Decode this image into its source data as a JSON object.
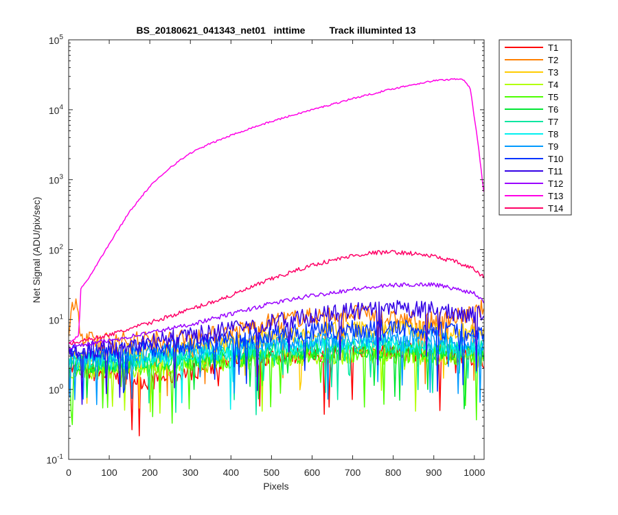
{
  "chart_data": {
    "type": "line",
    "title": "BS_20180621_041343_net01   inttime         Track illuminted 13",
    "xlabel": "Pixels",
    "ylabel": "Net Signal (ADU/pix/sec)",
    "xlim": [
      0,
      1024
    ],
    "ylim": [
      0.1,
      100000
    ],
    "yscale": "log",
    "x_ticks": [
      0,
      100,
      200,
      300,
      400,
      500,
      600,
      700,
      800,
      900,
      1000
    ],
    "y_ticks": [
      {
        "value": 0.1,
        "base": "10",
        "exp": "-1"
      },
      {
        "value": 1,
        "base": "10",
        "exp": "0"
      },
      {
        "value": 10,
        "base": "10",
        "exp": "1"
      },
      {
        "value": 100,
        "base": "10",
        "exp": "2"
      },
      {
        "value": 1000,
        "base": "10",
        "exp": "3"
      },
      {
        "value": 10000,
        "base": "10",
        "exp": "4"
      },
      {
        "value": 100000,
        "base": "10",
        "exp": "5"
      }
    ],
    "grid": false,
    "legend_position": "outside-right-top",
    "series": [
      {
        "name": "T1",
        "color": "#ff0000",
        "x": [
          0,
          100,
          200,
          300,
          400,
          500,
          600,
          700,
          800,
          900,
          1000,
          1024
        ],
        "y": [
          2.0,
          1.6,
          1.3,
          1.8,
          2.5,
          3.0,
          3.2,
          3.4,
          3.5,
          3.3,
          2.8,
          2.7
        ]
      },
      {
        "name": "T2",
        "color": "#ff7f00",
        "x": [
          0,
          10,
          20,
          30,
          100,
          200,
          300,
          400,
          500,
          600,
          700,
          800,
          900,
          1000,
          1024
        ],
        "y": [
          5.0,
          18.0,
          20.0,
          5.0,
          5.0,
          5.2,
          5.5,
          6.5,
          9.5,
          11.0,
          12.5,
          10.0,
          9.5,
          12.0,
          15.0
        ]
      },
      {
        "name": "T3",
        "color": "#ffcc00",
        "x": [
          0,
          100,
          200,
          300,
          400,
          500,
          600,
          700,
          800,
          900,
          1000,
          1024
        ],
        "y": [
          3.0,
          3.2,
          3.4,
          3.8,
          4.5,
          5.5,
          6.5,
          7.2,
          7.5,
          7.0,
          6.5,
          6.2
        ]
      },
      {
        "name": "T4",
        "color": "#b2ff00",
        "x": [
          0,
          100,
          200,
          300,
          400,
          500,
          600,
          700,
          800,
          900,
          1000,
          1024
        ],
        "y": [
          1.8,
          1.9,
          2.0,
          2.2,
          2.5,
          2.8,
          3.0,
          3.1,
          3.1,
          3.0,
          2.9,
          2.8
        ]
      },
      {
        "name": "T5",
        "color": "#4cff00",
        "x": [
          0,
          100,
          200,
          300,
          400,
          500,
          600,
          700,
          800,
          900,
          1000,
          1024
        ],
        "y": [
          2.0,
          2.1,
          2.2,
          2.4,
          2.7,
          3.0,
          3.2,
          3.3,
          3.3,
          3.2,
          3.0,
          3.0
        ]
      },
      {
        "name": "T6",
        "color": "#00e633",
        "x": [
          0,
          100,
          200,
          300,
          400,
          500,
          600,
          700,
          800,
          900,
          1000,
          1024
        ],
        "y": [
          2.2,
          2.3,
          2.5,
          2.7,
          3.0,
          3.3,
          3.6,
          3.8,
          3.8,
          3.6,
          3.4,
          3.3
        ]
      },
      {
        "name": "T7",
        "color": "#00e6a0",
        "x": [
          0,
          100,
          200,
          300,
          400,
          500,
          600,
          700,
          800,
          900,
          1000,
          1024
        ],
        "y": [
          2.4,
          2.5,
          2.7,
          3.0,
          3.3,
          3.7,
          4.0,
          4.2,
          4.2,
          4.0,
          3.8,
          3.7
        ]
      },
      {
        "name": "T8",
        "color": "#00f0f0",
        "x": [
          0,
          100,
          200,
          300,
          400,
          500,
          600,
          700,
          800,
          900,
          1000,
          1024
        ],
        "y": [
          2.5,
          2.6,
          2.8,
          3.1,
          3.5,
          3.9,
          4.2,
          4.4,
          4.5,
          4.3,
          4.0,
          3.9
        ]
      },
      {
        "name": "T9",
        "color": "#0099ff",
        "x": [
          0,
          100,
          200,
          300,
          400,
          500,
          600,
          700,
          800,
          900,
          1000,
          1024
        ],
        "y": [
          2.8,
          3.0,
          3.3,
          3.7,
          4.2,
          4.7,
          5.2,
          5.5,
          5.6,
          5.4,
          5.0,
          4.8
        ]
      },
      {
        "name": "T10",
        "color": "#0033ff",
        "x": [
          0,
          100,
          200,
          300,
          400,
          500,
          600,
          700,
          800,
          900,
          1000,
          1024
        ],
        "y": [
          3.2,
          3.5,
          3.9,
          4.4,
          5.2,
          6.0,
          6.7,
          7.2,
          7.4,
          7.1,
          6.5,
          6.2
        ]
      },
      {
        "name": "T11",
        "color": "#3300e6",
        "x": [
          0,
          100,
          200,
          300,
          400,
          500,
          600,
          700,
          800,
          900,
          1000,
          1024
        ],
        "y": [
          3.5,
          4.0,
          4.8,
          5.8,
          7.2,
          9.0,
          11.0,
          13.0,
          14.0,
          13.5,
          12.0,
          11.0
        ]
      },
      {
        "name": "T12",
        "color": "#9900ff",
        "x": [
          0,
          100,
          200,
          300,
          400,
          500,
          600,
          700,
          800,
          900,
          1000,
          1024
        ],
        "y": [
          4.0,
          5.0,
          6.5,
          8.5,
          12.0,
          17.0,
          22.0,
          27.0,
          31.0,
          32.0,
          24.0,
          18.0
        ]
      },
      {
        "name": "T13",
        "color": "#ff00e6",
        "x": [
          0,
          25,
          30,
          50,
          100,
          150,
          200,
          250,
          300,
          350,
          400,
          450,
          500,
          550,
          600,
          650,
          700,
          750,
          800,
          850,
          900,
          950,
          970,
          990,
          1010,
          1024
        ],
        "y": [
          4.5,
          6.0,
          28.0,
          40.0,
          120.0,
          350.0,
          800.0,
          1500.0,
          2400.0,
          3300.0,
          4300.0,
          5500.0,
          6800.0,
          8300.0,
          10000.0,
          12000.0,
          14500.0,
          17000.0,
          20000.0,
          23000.0,
          26000.0,
          27500.0,
          28000.0,
          20000.0,
          3000.0,
          600.0
        ]
      },
      {
        "name": "T14",
        "color": "#ff0066",
        "x": [
          0,
          100,
          200,
          300,
          400,
          500,
          600,
          700,
          750,
          800,
          850,
          900,
          950,
          1000,
          1024
        ],
        "y": [
          4.5,
          6.0,
          9.0,
          14.0,
          22.0,
          38.0,
          60.0,
          82.0,
          90.0,
          92.0,
          88.0,
          80.0,
          68.0,
          52.0,
          40.0
        ]
      }
    ]
  }
}
